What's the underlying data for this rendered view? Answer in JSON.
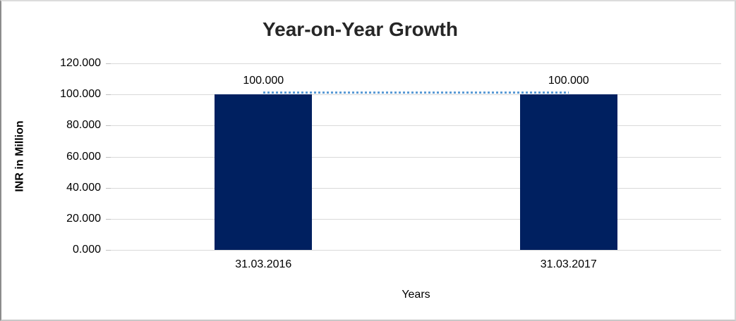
{
  "chart_data": {
    "type": "bar",
    "title": "Year-on-Year Growth",
    "xlabel": "Years",
    "ylabel": "INR in Million",
    "categories": [
      "31.03.2016",
      "31.03.2017"
    ],
    "values": [
      100.0,
      100.0
    ],
    "data_labels": [
      "100.000",
      "100.000"
    ],
    "ylim": [
      0,
      120
    ],
    "yticks": [
      {
        "value": 0,
        "label": "0.000"
      },
      {
        "value": 20,
        "label": "20.000"
      },
      {
        "value": 40,
        "label": "40.000"
      },
      {
        "value": 60,
        "label": "60.000"
      },
      {
        "value": 80,
        "label": "80.000"
      },
      {
        "value": 100,
        "label": "100.000"
      },
      {
        "value": 120,
        "label": "120.000"
      }
    ],
    "grid": "horizontal",
    "legend": "none",
    "bar_color": "#002060",
    "bar_width_frac": 0.16,
    "gridline_color": "#d9d9d9",
    "trend_line": {
      "style": "dotted",
      "color": "#5B9BD5",
      "from_category": 0,
      "to_category": 1,
      "at_value": 100.0
    }
  }
}
